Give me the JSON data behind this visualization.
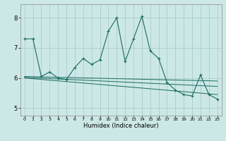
{
  "title": "",
  "xlabel": "Humidex (Indice chaleur)",
  "ylabel": "",
  "bg_color": "#cce8e6",
  "grid_color": "#aaccca",
  "line_color": "#1a6b60",
  "xlim": [
    -0.5,
    23.5
  ],
  "ylim": [
    4.75,
    8.45
  ],
  "xticks": [
    0,
    1,
    2,
    3,
    4,
    5,
    6,
    7,
    8,
    9,
    10,
    11,
    12,
    13,
    14,
    15,
    16,
    17,
    18,
    19,
    20,
    21,
    22,
    23
  ],
  "yticks": [
    5,
    6,
    7,
    8
  ],
  "series": {
    "main": {
      "x": [
        0,
        1,
        2,
        3,
        4,
        5,
        6,
        7,
        8,
        9,
        10,
        11,
        12,
        13,
        14,
        15,
        16,
        17,
        18,
        19,
        20,
        21,
        22,
        23
      ],
      "y": [
        7.3,
        7.3,
        6.05,
        6.2,
        6.0,
        5.95,
        6.35,
        6.65,
        6.45,
        6.6,
        7.55,
        8.0,
        6.55,
        7.3,
        8.05,
        6.9,
        6.65,
        5.85,
        5.6,
        5.45,
        5.4,
        6.1,
        5.45,
        5.3
      ]
    },
    "trend1": {
      "x": [
        0,
        23
      ],
      "y": [
        6.05,
        5.9
      ]
    },
    "trend2": {
      "x": [
        0,
        23
      ],
      "y": [
        6.02,
        5.72
      ]
    },
    "trend3": {
      "x": [
        0,
        23
      ],
      "y": [
        6.0,
        5.45
      ]
    }
  }
}
